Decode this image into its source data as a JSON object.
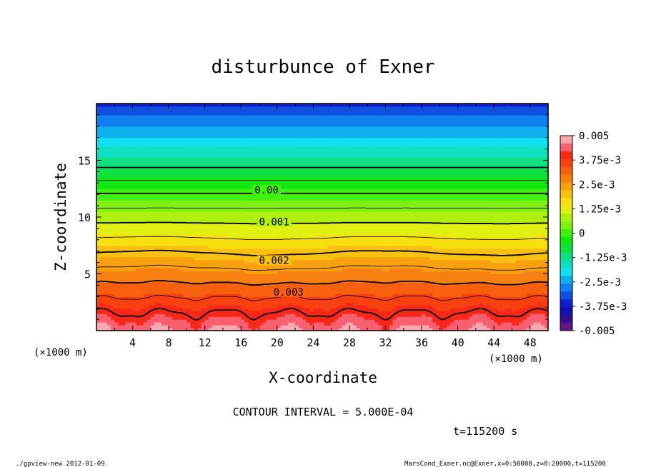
{
  "chart_data": {
    "type": "contour",
    "title": "disturbunce of Exner",
    "xlabel": "X-coordinate",
    "ylabel": "Z-coordinate",
    "x_unit_left": "(×1000 m)",
    "x_unit_right": "(×1000 m)",
    "xlim": [
      0,
      50
    ],
    "ylim": [
      0,
      20
    ],
    "x_ticks": [
      4,
      8,
      12,
      16,
      20,
      24,
      28,
      32,
      36,
      40,
      44,
      48
    ],
    "y_ticks": [
      5,
      10,
      15
    ],
    "contour_labels": [
      {
        "text": "0.00",
        "x": 17.5,
        "z": 12.4
      },
      {
        "text": "0.001",
        "x": 18.0,
        "z": 9.6
      },
      {
        "text": "0.002",
        "x": 18.0,
        "z": 6.2
      },
      {
        "text": "0.003",
        "x": 19.6,
        "z": 3.4
      }
    ],
    "colorbar": {
      "labels": [
        "0.005",
        "3.75e-3",
        "2.5e-3",
        "1.25e-3",
        "0",
        "-1.25e-3",
        "-2.5e-3",
        "-3.75e-3",
        "-0.005"
      ],
      "colors": [
        "#f8a8b0",
        "#f86070",
        "#f82818",
        "#f84010",
        "#f86010",
        "#f88010",
        "#f8a010",
        "#f8c010",
        "#f8e010",
        "#e0f010",
        "#b0f010",
        "#80f010",
        "#40f010",
        "#10e810",
        "#10e040",
        "#10e080",
        "#10e0c0",
        "#10e0f0",
        "#10b0f0",
        "#1080f0",
        "#1050e0",
        "#1020d0",
        "#1010b0",
        "#301090",
        "#601880"
      ]
    },
    "interval_text": "CONTOUR INTERVAL = 5.000E-04",
    "time_text": "t=115200 s",
    "footer_left": "./gpview-new  2012-01-09",
    "footer_right": "MarsCond_Exner.nc@Exner,x=0:50000,z=0:20000,t=115200"
  }
}
